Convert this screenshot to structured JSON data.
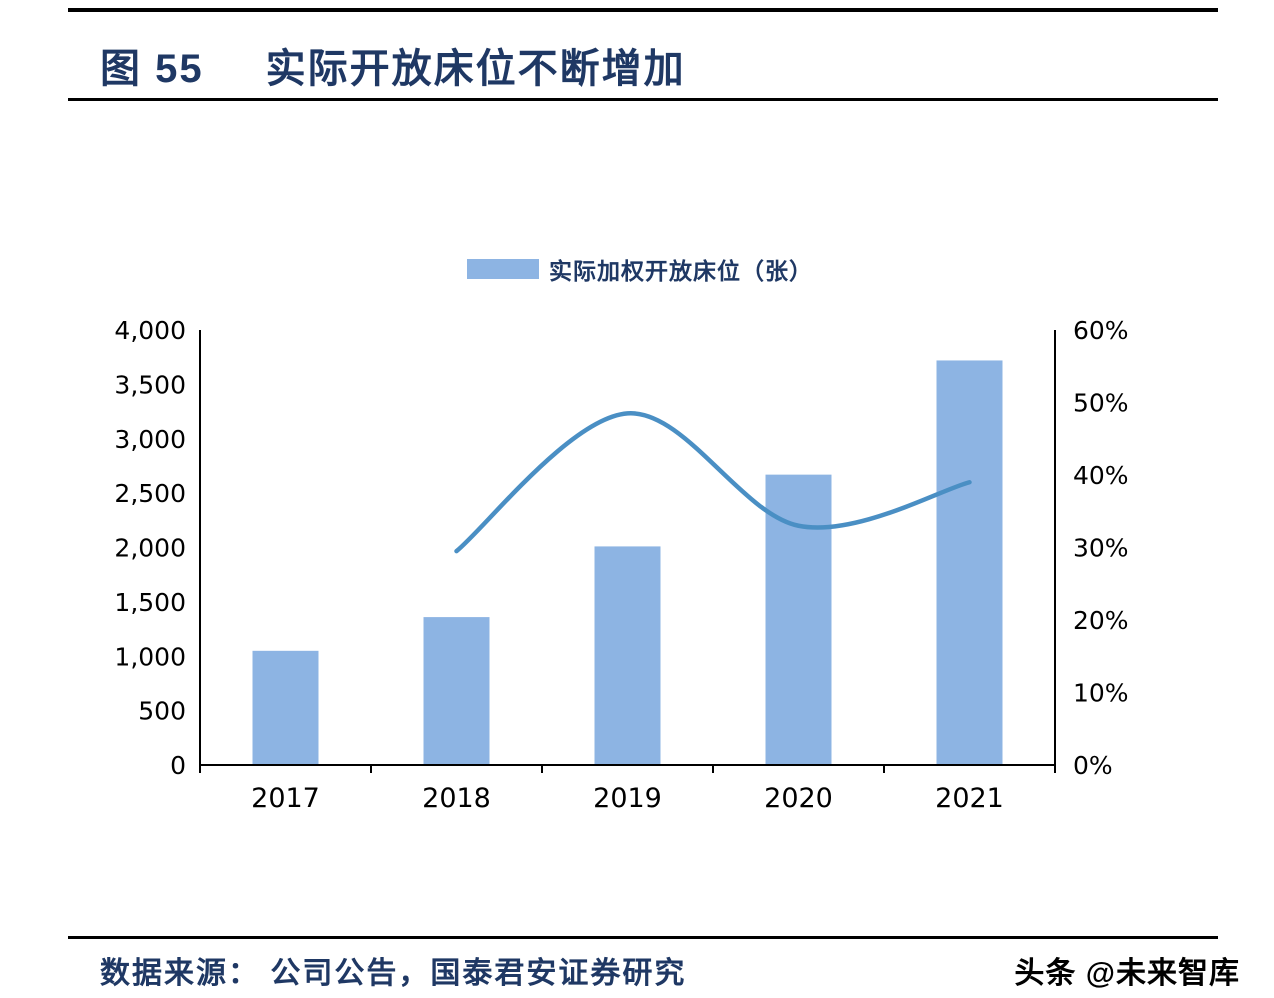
{
  "page": {
    "title_label": "图 55",
    "title_text": "实际开放床位不断增加",
    "footer_source": "数据来源：  公司公告，国泰君安证券研究",
    "watermark": "头条 @未来智库"
  },
  "legend": {
    "label": "实际加权开放床位（张）"
  },
  "colors": {
    "bar": "#8DB4E3",
    "line": "#4A8FC4",
    "title": "#1F3864",
    "axis": "#000000"
  },
  "chart_data": {
    "type": "bar",
    "title": "实际开放床位不断增加",
    "categories": [
      "2017",
      "2018",
      "2019",
      "2020",
      "2021"
    ],
    "series": [
      {
        "name": "实际加权开放床位（张）",
        "type": "bar",
        "axis": "left",
        "values": [
          1050,
          1360,
          2010,
          2670,
          3720
        ]
      },
      {
        "name": "",
        "type": "line",
        "axis": "right",
        "values": [
          null,
          29.5,
          48.5,
          33,
          39
        ]
      }
    ],
    "xlabel": "",
    "ylabel": "",
    "ylim": [
      0,
      4000
    ],
    "y_ticks": [
      "0",
      "500",
      "1,000",
      "1,500",
      "2,000",
      "2,500",
      "3,000",
      "3,500",
      "4,000"
    ],
    "y2lim": [
      0,
      60
    ],
    "y2_ticks": [
      "0%",
      "10%",
      "20%",
      "30%",
      "40%",
      "50%",
      "60%"
    ],
    "grid": false,
    "legend_position": "top"
  }
}
